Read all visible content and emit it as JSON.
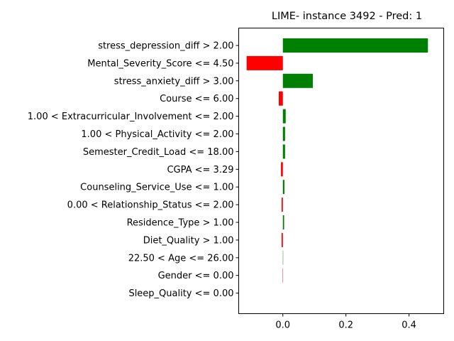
{
  "chart_data": {
    "type": "bar",
    "orientation": "horizontal",
    "title": "LIME- instance 3492 - Pred: 1",
    "xlabel": "",
    "ylabel": "",
    "xlim": [
      -0.14,
      0.51
    ],
    "xticks": [
      0.0,
      0.2,
      0.4
    ],
    "xtick_labels": [
      "0.0",
      "0.2",
      "0.4"
    ],
    "grid": false,
    "positive_color": "#008000",
    "negative_color": "#ff0000",
    "categories": [
      "stress_depression_diff > 2.00",
      "Mental_Severity_Score <= 4.50",
      "stress_anxiety_diff > 3.00",
      "Course <= 6.00",
      "1.00 < Extracurricular_Involvement <= 2.00",
      "1.00 < Physical_Activity <= 2.00",
      "Semester_Credit_Load <= 18.00",
      "CGPA <= 3.29",
      "Counseling_Service_Use <= 1.00",
      "0.00 < Relationship_Status <= 2.00",
      "Residence_Type > 1.00",
      "Diet_Quality > 1.00",
      "22.50 < Age <= 26.00",
      "Gender <= 0.00",
      "Sleep_Quality <= 0.00"
    ],
    "values": [
      0.46,
      -0.115,
      0.095,
      -0.013,
      0.009,
      0.007,
      0.007,
      -0.006,
      0.005,
      -0.004,
      0.004,
      -0.004,
      0.001,
      -0.001,
      0.0
    ]
  }
}
